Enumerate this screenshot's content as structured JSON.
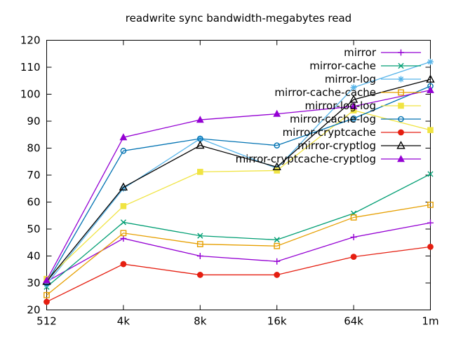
{
  "title": "readwrite sync bandwidth-megabytes read",
  "colors": {
    "background": "#ffffff",
    "axis": "#000000",
    "text": "#000000"
  },
  "chart_data": {
    "type": "line",
    "title": "readwrite sync bandwidth-megabytes read",
    "xlabel": "",
    "ylabel": "",
    "categories": [
      "512",
      "4k",
      "8k",
      "16k",
      "64k",
      "1m"
    ],
    "ylim": [
      20,
      120
    ],
    "ytick_step": 10,
    "ytick_labels": [
      "20",
      "30",
      "40",
      "50",
      "60",
      "70",
      "80",
      "90",
      "100",
      "110",
      "120"
    ],
    "grid": false,
    "legend_position": "top-right-inside",
    "series": [
      {
        "name": "mirror",
        "color": "#9400d3",
        "marker": "plus",
        "values": [
          30.5,
          46.5,
          40.0,
          38.0,
          47.0,
          52.3
        ]
      },
      {
        "name": "mirror-cache",
        "color": "#009e73",
        "marker": "x",
        "values": [
          28.5,
          52.5,
          47.5,
          46.0,
          55.8,
          70.4
        ]
      },
      {
        "name": "mirror-log",
        "color": "#56b4e9",
        "marker": "asterisk",
        "values": [
          29.5,
          65.0,
          83.5,
          72.5,
          102.5,
          112.0
        ]
      },
      {
        "name": "mirror-cache-cache",
        "color": "#e69f00",
        "marker": "square-open",
        "values": [
          25.5,
          48.5,
          44.4,
          43.7,
          54.3,
          59.0
        ]
      },
      {
        "name": "mirror-log-log",
        "color": "#f0e442",
        "marker": "square-filled",
        "values": [
          31.5,
          58.5,
          71.2,
          71.7,
          94.0,
          86.7
        ]
      },
      {
        "name": "mirror-cache-log",
        "color": "#0072b2",
        "marker": "circle-open",
        "values": [
          30.0,
          79.0,
          83.5,
          81.0,
          91.0,
          103.0
        ]
      },
      {
        "name": "mirror-cryptcache",
        "color": "#e51e10",
        "marker": "circle-filled",
        "values": [
          23.0,
          37.0,
          33.0,
          33.0,
          39.7,
          43.4
        ]
      },
      {
        "name": "mirror-cryptlog",
        "color": "#000000",
        "marker": "triangle-open",
        "values": [
          30.5,
          65.5,
          81.0,
          73.0,
          98.0,
          105.5
        ]
      },
      {
        "name": "mirror-cryptcache-cryptlog",
        "color": "#9400d3",
        "marker": "triangle-filled",
        "values": [
          31.0,
          84.0,
          90.5,
          92.7,
          95.5,
          101.5
        ]
      }
    ]
  }
}
